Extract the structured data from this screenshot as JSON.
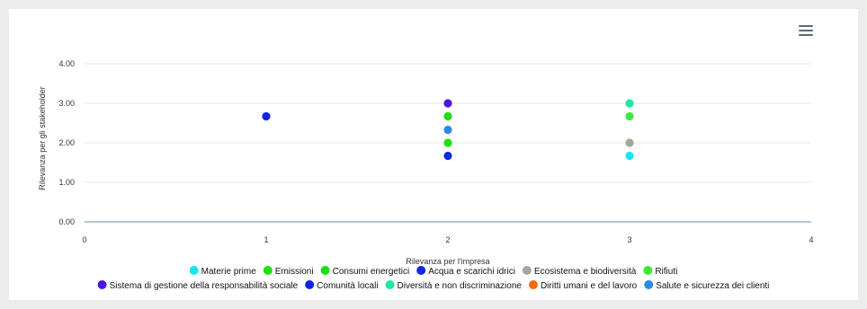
{
  "menu_icon": "hamburger-menu-icon",
  "chart_data": {
    "type": "scatter",
    "xlabel": "Rilevanza per l'impresa",
    "ylabel": "Rilevanza per gli stakeholder",
    "xlim": [
      0,
      4
    ],
    "ylim": [
      0,
      4
    ],
    "x_ticks": [
      "0",
      "1",
      "2",
      "3",
      "4"
    ],
    "y_ticks": [
      "0.00",
      "1.00",
      "2.00",
      "3.00",
      "4.00"
    ],
    "grid": true,
    "legend_position": "bottom-center",
    "series": [
      {
        "name": "Materie prime",
        "color": "#17e6f0",
        "points": [
          [
            3,
            1.67
          ]
        ]
      },
      {
        "name": "Emissioni",
        "color": "#22dd11",
        "points": [
          [
            2,
            2.0
          ]
        ]
      },
      {
        "name": "Consumi energetici",
        "color": "#1ddd16",
        "points": [
          [
            2,
            2.67
          ]
        ]
      },
      {
        "name": "Acqua e scarichi idrici",
        "color": "#1128e6",
        "points": [
          [
            2,
            1.67
          ]
        ]
      },
      {
        "name": "Ecosistema e biodiversità",
        "color": "#a3a89a",
        "points": [
          [
            3,
            2.0
          ]
        ]
      },
      {
        "name": "Rifiuti",
        "color": "#3ee83a",
        "points": [
          [
            3,
            2.67
          ]
        ]
      },
      {
        "name": "Sistema di gestione della responsabilità sociale",
        "color": "#4d16e0",
        "points": [
          [
            2,
            3.0
          ]
        ]
      },
      {
        "name": "Comunità locali",
        "color": "#0d24e8",
        "points": [
          [
            1,
            2.67
          ]
        ]
      },
      {
        "name": "Diversità e non discriminazione",
        "color": "#1ee8a0",
        "points": [
          [
            3,
            3.0
          ]
        ]
      },
      {
        "name": "Diritti umani e del lavoro",
        "color": "#f26b10",
        "points": []
      },
      {
        "name": "Salute e sicurezza dei clienti",
        "color": "#2a8ae6",
        "points": [
          [
            2,
            2.33
          ]
        ]
      }
    ],
    "legend_rows": [
      [
        0,
        1,
        2,
        3,
        4,
        5
      ],
      [
        6,
        7,
        8,
        9,
        10
      ]
    ]
  }
}
